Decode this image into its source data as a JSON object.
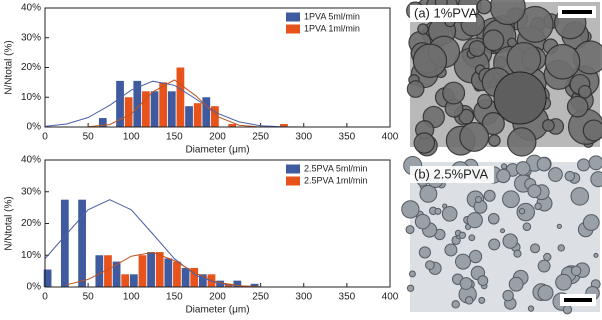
{
  "chart_data": [
    {
      "type": "bar",
      "x_label": "Diameter (μm)",
      "y_label": "N/Ntotal (%)",
      "xlim": [
        0,
        400
      ],
      "xticks": [
        0,
        50,
        100,
        150,
        200,
        250,
        300,
        350,
        400
      ],
      "ylim": [
        0,
        40
      ],
      "yticks": [
        {
          "value": 0,
          "label": "0%"
        },
        {
          "value": 10,
          "label": "10%"
        },
        {
          "value": 20,
          "label": "20%"
        },
        {
          "value": 30,
          "label": "30%"
        },
        {
          "value": 40,
          "label": "40%"
        }
      ],
      "series": [
        {
          "name": "1PVA 5ml/min",
          "color": "#3f5a9e",
          "x": [
            67,
            87,
            107,
            127,
            147,
            167,
            187
          ],
          "values": [
            3,
            15.5,
            15.5,
            12,
            12,
            7,
            10
          ]
        },
        {
          "name": "1PVA 1ml/min",
          "color": "#e8521b",
          "x": [
            97,
            117,
            137,
            157,
            177,
            197,
            217,
            277
          ],
          "values": [
            10,
            12,
            15,
            20,
            8,
            7,
            1,
            1
          ]
        }
      ],
      "fits": [
        {
          "color": "#4a5fa8",
          "x": [
            0,
            25,
            50,
            75,
            100,
            125,
            150,
            175,
            200,
            225,
            250,
            275,
            300
          ],
          "values": [
            0.2,
            1.0,
            3.2,
            7.3,
            12.4,
            15.4,
            14.0,
            9.4,
            4.6,
            1.7,
            0.4,
            0.1,
            0
          ]
        },
        {
          "color": "#c0541e",
          "x": [
            50,
            75,
            100,
            125,
            150,
            175,
            200,
            225,
            250
          ],
          "values": [
            0.1,
            0.8,
            4.4,
            11.8,
            15.8,
            10.5,
            3.5,
            0.6,
            0
          ]
        }
      ]
    },
    {
      "type": "bar",
      "x_label": "Diameter (μm)",
      "y_label": "N/Ntotal (%)",
      "xlim": [
        0,
        400
      ],
      "xticks": [
        0,
        50,
        100,
        150,
        200,
        250,
        300,
        350,
        400
      ],
      "ylim": [
        0,
        40
      ],
      "yticks": [
        {
          "value": 0,
          "label": "0%"
        },
        {
          "value": 10,
          "label": "10%"
        },
        {
          "value": 20,
          "label": "20%"
        },
        {
          "value": 30,
          "label": "30%"
        },
        {
          "value": 40,
          "label": "40%"
        }
      ],
      "series": [
        {
          "name": "2.5PVA 5ml/min",
          "color": "#3f5a9e",
          "x": [
            3,
            23,
            43,
            63,
            83,
            103,
            123,
            143,
            163,
            183,
            203,
            223,
            243
          ],
          "values": [
            5.5,
            27.5,
            27.5,
            10,
            8,
            4,
            11,
            9,
            6,
            4,
            2,
            2,
            1
          ]
        },
        {
          "name": "2.5PVA 1ml/min",
          "color": "#e8521b",
          "x": [
            73,
            93,
            113,
            133,
            153,
            173,
            193,
            213
          ],
          "values": [
            10,
            4,
            10,
            11,
            8,
            6,
            4,
            1
          ]
        }
      ],
      "fits": [
        {
          "color": "#4a5fa8",
          "x": [
            0,
            25,
            50,
            75,
            100,
            125,
            150,
            175,
            200,
            225,
            250
          ],
          "values": [
            8.9,
            16.7,
            24.3,
            27.5,
            24.3,
            16.7,
            8.9,
            3.7,
            1.2,
            0.3,
            0.1
          ]
        },
        {
          "color": "#c0541e",
          "x": [
            25,
            50,
            75,
            100,
            125,
            150,
            175,
            200,
            225,
            250
          ],
          "values": [
            0.7,
            2.4,
            5.8,
            9.7,
            10.9,
            8.3,
            4.3,
            1.5,
            0.4,
            0.1
          ]
        }
      ]
    }
  ],
  "images": [
    {
      "label": "(a) 1%PVA"
    },
    {
      "label": "(b) 2.5%PVA"
    }
  ]
}
